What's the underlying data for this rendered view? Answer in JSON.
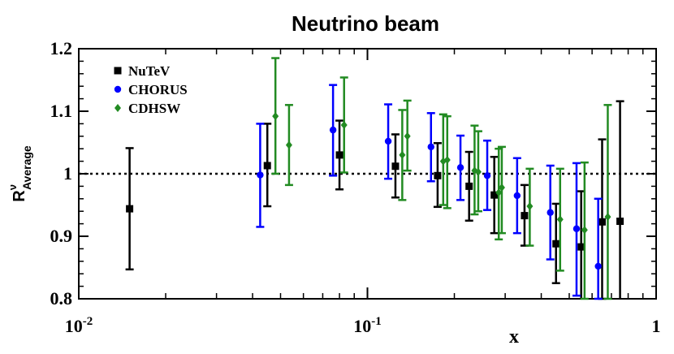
{
  "chart_data": {
    "type": "scatter",
    "title": "Neutrino beam",
    "xlabel": "x",
    "ylabel": {
      "base": "R",
      "superscript": "ν",
      "subscript": "Average"
    },
    "xscale": "log",
    "xlim": [
      0.01,
      1
    ],
    "ylim": [
      0.8,
      1.2
    ],
    "x_ticks": [
      {
        "value": 0.01,
        "mantissa": "10",
        "exponent": "-2"
      },
      {
        "value": 0.1,
        "mantissa": "10",
        "exponent": "-1"
      },
      {
        "value": 1,
        "mantissa": "1",
        "exponent": ""
      }
    ],
    "y_ticks": [
      0.8,
      0.9,
      1,
      1.1,
      1.2
    ],
    "y_tick_labels": [
      "0.8",
      "0.9",
      "1",
      "1.1",
      "1.2"
    ],
    "reference_line": 1.0,
    "legend_position": "top-left",
    "series": [
      {
        "name": "NuTeV",
        "color": "#000000",
        "marker": "square",
        "points": [
          {
            "x": 0.015,
            "y": 0.944,
            "lo": 0.847,
            "hi": 1.041
          },
          {
            "x": 0.045,
            "y": 1.013,
            "lo": 0.948,
            "hi": 1.08
          },
          {
            "x": 0.08,
            "y": 1.03,
            "lo": 0.975,
            "hi": 1.085
          },
          {
            "x": 0.125,
            "y": 1.012,
            "lo": 0.962,
            "hi": 1.063
          },
          {
            "x": 0.175,
            "y": 0.997,
            "lo": 0.947,
            "hi": 1.049
          },
          {
            "x": 0.225,
            "y": 0.98,
            "lo": 0.925,
            "hi": 1.035
          },
          {
            "x": 0.275,
            "y": 0.966,
            "lo": 0.905,
            "hi": 1.027
          },
          {
            "x": 0.35,
            "y": 0.933,
            "lo": 0.885,
            "hi": 0.982
          },
          {
            "x": 0.45,
            "y": 0.888,
            "lo": 0.825,
            "hi": 0.952
          },
          {
            "x": 0.55,
            "y": 0.883,
            "lo": 0.795,
            "hi": 0.972
          },
          {
            "x": 0.65,
            "y": 0.923,
            "lo": 0.8,
            "hi": 1.055
          },
          {
            "x": 0.75,
            "y": 0.924,
            "lo": 0.78,
            "hi": 1.116
          }
        ]
      },
      {
        "name": "CHORUS",
        "color": "#0000ff",
        "marker": "circle",
        "points": [
          {
            "x": 0.0425,
            "y": 0.998,
            "lo": 0.915,
            "hi": 1.08
          },
          {
            "x": 0.076,
            "y": 1.07,
            "lo": 0.997,
            "hi": 1.142
          },
          {
            "x": 0.118,
            "y": 1.052,
            "lo": 0.992,
            "hi": 1.111
          },
          {
            "x": 0.166,
            "y": 1.043,
            "lo": 0.988,
            "hi": 1.097
          },
          {
            "x": 0.21,
            "y": 1.01,
            "lo": 0.958,
            "hi": 1.061
          },
          {
            "x": 0.26,
            "y": 0.997,
            "lo": 0.942,
            "hi": 1.053
          },
          {
            "x": 0.33,
            "y": 0.965,
            "lo": 0.905,
            "hi": 1.025
          },
          {
            "x": 0.43,
            "y": 0.938,
            "lo": 0.863,
            "hi": 1.013
          },
          {
            "x": 0.53,
            "y": 0.912,
            "lo": 0.805,
            "hi": 1.017
          },
          {
            "x": 0.63,
            "y": 0.852,
            "lo": 0.8,
            "hi": 0.96
          }
        ]
      },
      {
        "name": "CDHSW",
        "color": "#228b22",
        "marker": "diamond",
        "points": [
          {
            "x": 0.048,
            "y": 1.092,
            "lo": 1.0,
            "hi": 1.185
          },
          {
            "x": 0.0535,
            "y": 1.046,
            "lo": 0.982,
            "hi": 1.11
          },
          {
            "x": 0.083,
            "y": 1.078,
            "lo": 1.002,
            "hi": 1.154
          },
          {
            "x": 0.132,
            "y": 1.03,
            "lo": 0.958,
            "hi": 1.102
          },
          {
            "x": 0.1375,
            "y": 1.06,
            "lo": 1.005,
            "hi": 1.117
          },
          {
            "x": 0.183,
            "y": 1.02,
            "lo": 0.95,
            "hi": 1.095
          },
          {
            "x": 0.189,
            "y": 1.022,
            "lo": 0.945,
            "hi": 1.092
          },
          {
            "x": 0.235,
            "y": 1.005,
            "lo": 0.935,
            "hi": 1.077
          },
          {
            "x": 0.242,
            "y": 1.003,
            "lo": 0.94,
            "hi": 1.068
          },
          {
            "x": 0.285,
            "y": 0.97,
            "lo": 0.895,
            "hi": 1.04
          },
          {
            "x": 0.292,
            "y": 0.978,
            "lo": 0.905,
            "hi": 1.043
          },
          {
            "x": 0.365,
            "y": 0.948,
            "lo": 0.885,
            "hi": 1.008
          },
          {
            "x": 0.465,
            "y": 0.927,
            "lo": 0.845,
            "hi": 1.008
          },
          {
            "x": 0.565,
            "y": 0.91,
            "lo": 0.8,
            "hi": 1.018
          },
          {
            "x": 0.68,
            "y": 0.931,
            "lo": 0.8,
            "hi": 1.11
          }
        ]
      }
    ]
  }
}
